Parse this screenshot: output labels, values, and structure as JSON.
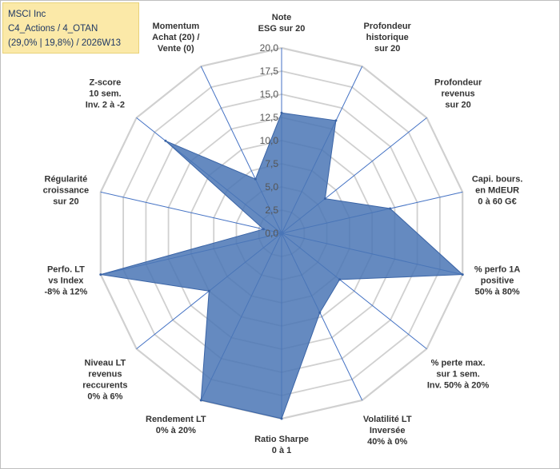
{
  "info_box": {
    "line1": "MSCI Inc",
    "line2": "C4_Actions / 4_OTAN",
    "line3": "(29,0% | 19,8%) / 2026W13"
  },
  "chart_data": {
    "type": "radar",
    "title": "",
    "range": [
      0,
      20
    ],
    "ticks": [
      "0,0",
      "2,5",
      "5,0",
      "7,5",
      "10,0",
      "12,5",
      "15,0",
      "17,5",
      "20,0"
    ],
    "axes": [
      {
        "label": [
          "Note",
          "ESG sur 20"
        ],
        "value": 13
      },
      {
        "label": [
          "Profondeur",
          "historique",
          "sur 20"
        ],
        "value": 13.5
      },
      {
        "label": [
          "Profondeur",
          "revenus",
          "sur 20"
        ],
        "value": 6
      },
      {
        "label": [
          "Capi. bours.",
          "en MdEUR",
          "0 à 60 G€"
        ],
        "value": 12
      },
      {
        "label": [
          "% perfo 1A",
          "positive",
          "50% à 80%"
        ],
        "value": 20
      },
      {
        "label": [
          "% perte max.",
          "sur 1 sem.",
          "Inv. 50% à 20%"
        ],
        "value": 8
      },
      {
        "label": [
          "Volatilité LT",
          "Inversée",
          "40% à 0%"
        ],
        "value": 9.5
      },
      {
        "label": [
          "Ratio Sharpe",
          "0 à 1"
        ],
        "value": 20
      },
      {
        "label": [
          "Rendement LT",
          "0% à 20%"
        ],
        "value": 20
      },
      {
        "label": [
          "Niveau LT",
          "revenus",
          "reccurents",
          "0% à 6%"
        ],
        "value": 10
      },
      {
        "label": [
          "Perfo. LT",
          "vs Index",
          "-8% à 12%"
        ],
        "value": 20
      },
      {
        "label": [
          "Régularité",
          "croissance",
          "sur 20"
        ],
        "value": 2
      },
      {
        "label": [
          "Z-score",
          "10 sem.",
          "Inv. 2 à -2"
        ],
        "value": 16
      },
      {
        "label": [
          "Momentum",
          "Achat (20) /",
          "Vente (0)"
        ],
        "value": 6.5
      }
    ],
    "colors": {
      "fill": "#4a76b5",
      "stroke": "#3a64a6",
      "axis": "#4472c4",
      "grid": "#d0d0d0"
    },
    "grid": true,
    "legend": "none"
  }
}
